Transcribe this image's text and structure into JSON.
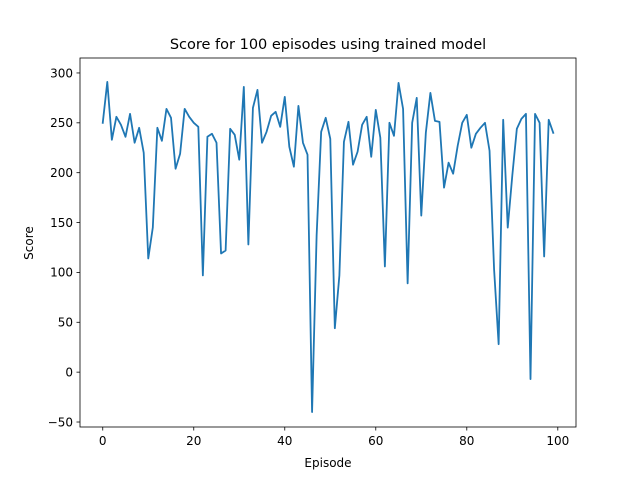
{
  "chart_data": {
    "type": "line",
    "title": "Score for 100 episodes using trained model",
    "xlabel": "Episode",
    "ylabel": "Score",
    "xlim": [
      -5,
      104
    ],
    "ylim": [
      -55,
      315
    ],
    "x_ticks": [
      0,
      20,
      40,
      60,
      80,
      100
    ],
    "y_ticks": [
      -50,
      0,
      50,
      100,
      150,
      200,
      250,
      300
    ],
    "x_tick_labels": [
      "0",
      "20",
      "40",
      "60",
      "80",
      "100"
    ],
    "y_tick_labels": [
      "−50",
      "0",
      "50",
      "100",
      "150",
      "200",
      "250",
      "300"
    ],
    "grid": false,
    "line_color": "#1f77b4",
    "series": [
      {
        "x": [
          0,
          1,
          2,
          3,
          4,
          5,
          6,
          7,
          8,
          9,
          10,
          11,
          12,
          13,
          14,
          15,
          16,
          17,
          18,
          19,
          20,
          21,
          22,
          23,
          24,
          25,
          26,
          27,
          28,
          29,
          30,
          31,
          32,
          33,
          34,
          35,
          36,
          37,
          38,
          39,
          40,
          41,
          42,
          43,
          44,
          45,
          46,
          47,
          48,
          49,
          50,
          51,
          52,
          53,
          54,
          55,
          56,
          57,
          58,
          59,
          60,
          61,
          62,
          63,
          64,
          65,
          66,
          67,
          68,
          69,
          70,
          71,
          72,
          73,
          74,
          75,
          76,
          77,
          78,
          79,
          80,
          81,
          82,
          83,
          84,
          85,
          86,
          87,
          88,
          89,
          90,
          91,
          92,
          93,
          94,
          95,
          96,
          97,
          98,
          99
        ],
        "values": [
          250,
          291,
          233,
          256,
          248,
          236,
          259,
          230,
          245,
          220,
          114,
          145,
          245,
          232,
          264,
          255,
          204,
          219,
          264,
          256,
          250,
          246,
          97,
          236,
          239,
          230,
          119,
          122,
          244,
          238,
          213,
          286,
          128,
          265,
          283,
          230,
          241,
          257,
          261,
          246,
          276,
          226,
          206,
          267,
          230,
          218,
          -40,
          137,
          241,
          255,
          234,
          44,
          97,
          231,
          251,
          208,
          221,
          248,
          256,
          216,
          263,
          235,
          106,
          250,
          237,
          290,
          264,
          89,
          250,
          275,
          157,
          240,
          280,
          252,
          251,
          185,
          210,
          199,
          227,
          250,
          258,
          225,
          239,
          245,
          250,
          222,
          103,
          28,
          253,
          145,
          197,
          244,
          254,
          259,
          -7,
          259,
          250,
          116,
          253,
          240
        ]
      }
    ]
  }
}
